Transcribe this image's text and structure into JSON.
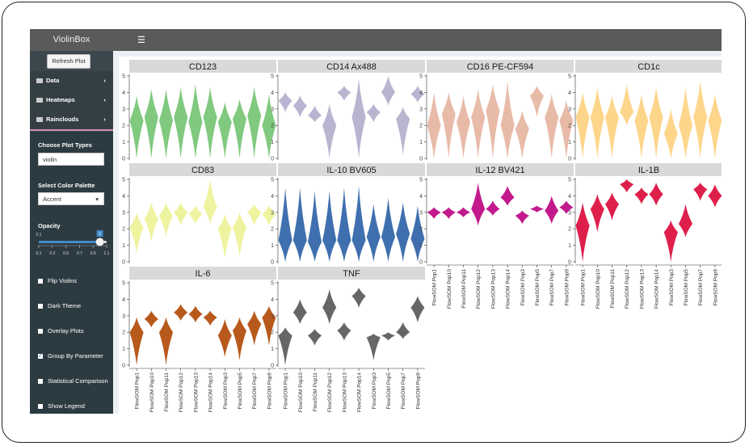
{
  "app": {
    "brand": "ViolinBox",
    "sidebar": {
      "button": "Refresh Plot",
      "menu": [
        "Data",
        "Heatmaps",
        "Rainclouds"
      ],
      "plot_type": {
        "label": "Choose Plot Types",
        "value": "violin"
      },
      "palette": {
        "label": "Select Color Palette",
        "value": "Accent"
      },
      "opacity": {
        "label": "Opacity",
        "min": 0.1,
        "max": 1,
        "value": 1,
        "ticks": [
          0.1,
          0.3,
          0.5,
          0.7,
          0.9,
          1.1
        ]
      },
      "checkboxes": [
        {
          "label": "Flip Violins",
          "checked": false
        },
        {
          "label": "Dark Theme",
          "checked": false
        },
        {
          "label": "Overlay Plots",
          "checked": false
        },
        {
          "label": "Group By Parameter",
          "checked": true
        },
        {
          "label": "Statistical Comparison",
          "checked": false
        },
        {
          "label": "Show Legend",
          "checked": false
        }
      ]
    },
    "plots": {
      "type": "violin",
      "categories": [
        "FlowSOM Pop1",
        "FlowSOM Pop10",
        "FlowSOM Pop11",
        "FlowSOM Pop12",
        "FlowSOM Pop13",
        "FlowSOM Pop14",
        "FlowSOM Pop3",
        "FlowSOM Pop5",
        "FlowSOM Pop7",
        "FlowSOM Pop9"
      ],
      "ylim": [
        0,
        5
      ],
      "yticks": [
        0,
        1,
        2,
        3,
        4,
        5
      ],
      "panels": [
        {
          "title": "CD123",
          "color": "#80c97f",
          "values": [
            [
              0,
              2.3,
              3.8
            ],
            [
              0,
              2.5,
              4.2
            ],
            [
              0,
              2.3,
              4.2
            ],
            [
              0,
              2.5,
              4.3
            ],
            [
              0,
              2.2,
              4.5
            ],
            [
              0,
              2.5,
              4.3
            ],
            [
              0,
              2.2,
              3.4
            ],
            [
              0,
              2.4,
              3.6
            ],
            [
              0,
              2.6,
              4.3
            ],
            [
              0,
              2,
              3.9
            ]
          ]
        },
        {
          "title": "CD14 Ax488",
          "color": "#b9b4d0",
          "values": [
            [
              2.8,
              3.5,
              4
            ],
            [
              2.5,
              3.2,
              3.8
            ],
            [
              2.2,
              2.6,
              3.2
            ],
            [
              0,
              2,
              3.3
            ],
            [
              3.5,
              4,
              4.4
            ],
            [
              0,
              2.5,
              4.8
            ],
            [
              2.2,
              2.8,
              3.3
            ],
            [
              3.2,
              4,
              5
            ],
            [
              0.2,
              2.4,
              3.1
            ],
            [
              3.4,
              3.9,
              4.4
            ]
          ]
        },
        {
          "title": "CD16 PE-CF594",
          "color": "#e8bba8",
          "values": [
            [
              0,
              2,
              4
            ],
            [
              0,
              2.7,
              4
            ],
            [
              0,
              2.2,
              3.8
            ],
            [
              0,
              2.5,
              4.2
            ],
            [
              0,
              2.9,
              4.5
            ],
            [
              0,
              2,
              4.7
            ],
            [
              0,
              1.8,
              2.9
            ],
            [
              2.5,
              3.8,
              4.4
            ],
            [
              0,
              2.5,
              3.9
            ],
            [
              0,
              2.3,
              3.5
            ]
          ]
        },
        {
          "title": "CD1c",
          "color": "#fdd68b",
          "values": [
            [
              0,
              2.5,
              4
            ],
            [
              0,
              2.5,
              4.3
            ],
            [
              0,
              2.5,
              3.8
            ],
            [
              2,
              2.8,
              4.5
            ],
            [
              0,
              2.3,
              3.9
            ],
            [
              0,
              2.5,
              4.3
            ],
            [
              0,
              1.5,
              3
            ],
            [
              0,
              2,
              4.3
            ],
            [
              0,
              2.5,
              4.7
            ],
            [
              0,
              2.3,
              3.9
            ]
          ]
        },
        {
          "title": "CD83",
          "color": "#eef3a0",
          "values": [
            [
              0.5,
              2.1,
              3
            ],
            [
              1.2,
              2.6,
              3.6
            ],
            [
              1.5,
              2.8,
              3.6
            ],
            [
              2.2,
              3,
              3.6
            ],
            [
              2.3,
              2.9,
              3.4
            ],
            [
              2.3,
              3.3,
              5
            ],
            [
              0.2,
              2,
              2.9
            ],
            [
              0.3,
              2.1,
              3
            ],
            [
              2.2,
              3,
              3.5
            ],
            [
              2.2,
              2.9,
              3.4
            ]
          ]
        },
        {
          "title": "IL-10 BV605",
          "color": "#3f6fae",
          "values": [
            [
              0,
              1.3,
              4.5
            ],
            [
              0,
              1.3,
              4.5
            ],
            [
              0,
              1.2,
              4.3
            ],
            [
              0,
              1.3,
              4.3
            ],
            [
              0,
              1.3,
              4.5
            ],
            [
              0,
              1.3,
              4.6
            ],
            [
              0,
              1.5,
              3.5
            ],
            [
              0,
              1.5,
              3.9
            ],
            [
              0,
              1.7,
              3.6
            ],
            [
              0,
              1.4,
              3.4
            ]
          ]
        },
        {
          "title": "IL-12 BV421",
          "color": "#c21a8c",
          "values": [
            [
              2.6,
              3,
              3.3
            ],
            [
              2.6,
              3,
              3.3
            ],
            [
              2.7,
              3,
              3.3
            ],
            [
              2.2,
              3.2,
              4.8
            ],
            [
              2.8,
              3.2,
              3.7
            ],
            [
              3.4,
              3.9,
              4.6
            ],
            [
              2.3,
              2.8,
              3.1
            ],
            [
              3,
              3.2,
              3.4
            ],
            [
              2.3,
              3.1,
              4
            ],
            [
              2.9,
              3.3,
              3.7
            ]
          ]
        },
        {
          "title": "IL-1B",
          "color": "#de1f4c",
          "values": [
            [
              0,
              2.2,
              3.6
            ],
            [
              1.8,
              3.2,
              4.1
            ],
            [
              2.5,
              3.5,
              4.2
            ],
            [
              4.2,
              4.7,
              5
            ],
            [
              3.5,
              4.1,
              4.5
            ],
            [
              3.4,
              4.1,
              4.8
            ],
            [
              0,
              1.8,
              2.5
            ],
            [
              1.5,
              2.3,
              3.5
            ],
            [
              3.7,
              4.4,
              4.8
            ],
            [
              3.3,
              4,
              4.7
            ]
          ]
        },
        {
          "title": "IL-6",
          "color": "#b8591c",
          "values": [
            [
              0,
              2,
              2.9
            ],
            [
              2.3,
              2.8,
              3.3
            ],
            [
              0,
              2,
              2.9
            ],
            [
              2.7,
              3.2,
              3.7
            ],
            [
              2.6,
              3.1,
              3.6
            ],
            [
              2.4,
              2.9,
              3.3
            ],
            [
              0.5,
              1.8,
              2.8
            ],
            [
              0.3,
              2.1,
              2.9
            ],
            [
              1.2,
              2.5,
              3.3
            ],
            [
              1.2,
              2.9,
              3.6
            ]
          ]
        },
        {
          "title": "TNF",
          "color": "#666666",
          "values": [
            [
              0,
              1.8,
              2.3
            ],
            [
              2.5,
              3.2,
              4
            ],
            [
              1.2,
              1.8,
              2.2
            ],
            [
              2.5,
              3.5,
              4.6
            ],
            [
              1.5,
              2.1,
              2.6
            ],
            [
              3.5,
              4.2,
              4.7
            ],
            [
              0.3,
              1.7,
              1.9
            ],
            [
              1.5,
              1.8,
              2
            ],
            [
              1.6,
              2,
              2.6
            ],
            [
              2.6,
              3.5,
              4.2
            ]
          ]
        }
      ]
    }
  }
}
